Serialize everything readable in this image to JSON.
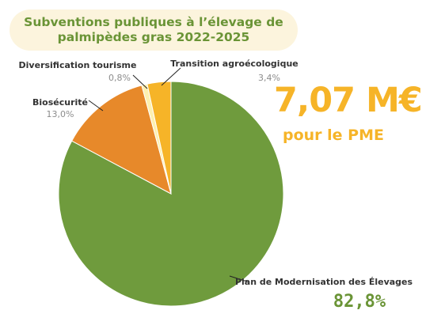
{
  "title": {
    "line1": "Subventions publiques à l’élevage de",
    "line2": "palmipèdes gras 2022-2025"
  },
  "total": {
    "amount": "7,07 M€",
    "subtitle": "pour le PME"
  },
  "colors": {
    "green": "#6f9b3d",
    "orange": "#e7892a",
    "cream": "#fdf0b0",
    "gold": "#f6b428",
    "title_bg": "#fcf4dd",
    "title_text": "#6a9436"
  },
  "chart_data": {
    "type": "pie",
    "title": "Subventions publiques à l’élevage de palmipèdes gras 2022-2025",
    "start_angle_deg": 0,
    "direction": "clockwise",
    "slices": [
      {
        "label": "Plan de Modernisation des Élevages",
        "value": 82.8,
        "display": "82,8%",
        "color": "#6f9b3d"
      },
      {
        "label": "Biosécurité",
        "value": 13.0,
        "display": "13,0%",
        "color": "#e7892a"
      },
      {
        "label": "Diversification tourisme",
        "value": 0.8,
        "display": "0,8%",
        "color": "#fdf0b0"
      },
      {
        "label": "Transition agroécologique",
        "value": 3.4,
        "display": "3,4%",
        "color": "#f6b428"
      }
    ]
  }
}
